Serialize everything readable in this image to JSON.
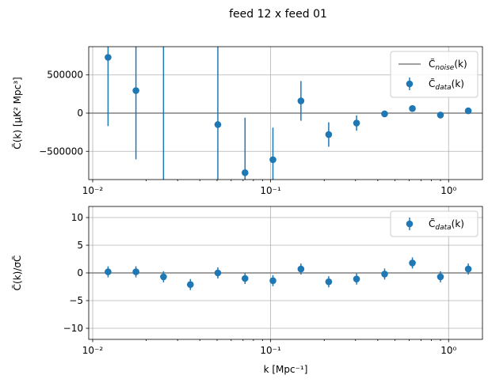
{
  "figure": {
    "title": "feed 12 x feed 01"
  },
  "colors": {
    "data": "#1f77b4",
    "noise": "#808080",
    "grid": "#b0b0b0"
  },
  "chart_data": [
    {
      "type": "scatter",
      "xscale": "log",
      "xlim": [
        0.0095,
        1.55
      ],
      "ylim": [
        -870000,
        870000
      ],
      "ylabel": "C̃(k) [μK² Mpc³]",
      "xlabel": "",
      "grid": true,
      "legend_position": "top-right",
      "x_ticks": [
        {
          "value": 0.01,
          "label": "10⁻²"
        },
        {
          "value": 0.1,
          "label": "10⁻¹"
        },
        {
          "value": 1,
          "label": "10⁰"
        }
      ],
      "y_ticks": [
        {
          "value": 500000,
          "label": "500000"
        },
        {
          "value": 0,
          "label": "0"
        },
        {
          "value": -500000,
          "label": "−500000"
        }
      ],
      "legend": [
        {
          "label": "C̃noise(k)",
          "kind": "line"
        },
        {
          "label": "C̃data(k)",
          "kind": "errorbar"
        }
      ],
      "series": [
        {
          "name": "C̃noise(k)",
          "kind": "line",
          "values": [
            0,
            0
          ]
        },
        {
          "name": "C̃data(k)",
          "kind": "errorbar",
          "x": [
            0.0122,
            0.0175,
            0.025,
            0.0505,
            0.0718,
            0.103,
            0.148,
            0.212,
            0.304,
            0.437,
            0.626,
            0.9,
            1.29
          ],
          "y": [
            730000,
            295000,
            null,
            -150000,
            -780000,
            -610000,
            160000,
            -280000,
            -130000,
            -10000,
            60000,
            -25000,
            30000
          ],
          "err": [
            900000,
            900000,
            1150000,
            1100000,
            720000,
            420000,
            260000,
            160000,
            100000,
            30000,
            25000,
            18000,
            15000
          ]
        }
      ]
    },
    {
      "type": "scatter",
      "xscale": "log",
      "xlim": [
        0.0095,
        1.55
      ],
      "ylim": [
        -12,
        12
      ],
      "ylabel": "C̃(k)/σC̃",
      "xlabel": "k [Mpc⁻¹]",
      "grid": true,
      "legend_position": "top-right",
      "x_ticks": [
        {
          "value": 0.01,
          "label": "10⁻²"
        },
        {
          "value": 0.1,
          "label": "10⁻¹"
        },
        {
          "value": 1,
          "label": "10⁰"
        }
      ],
      "y_ticks": [
        {
          "value": 10,
          "label": "10"
        },
        {
          "value": 5,
          "label": "5"
        },
        {
          "value": 0,
          "label": "0"
        },
        {
          "value": -5,
          "label": "−5"
        },
        {
          "value": -10,
          "label": "−10"
        }
      ],
      "legend": [
        {
          "label": "C̃data(k)",
          "kind": "errorbar"
        }
      ],
      "series": [
        {
          "name": "reference",
          "kind": "line",
          "values": [
            0,
            0
          ]
        },
        {
          "name": "C̃data(k)",
          "kind": "errorbar",
          "x": [
            0.0122,
            0.0175,
            0.025,
            0.0354,
            0.0505,
            0.0718,
            0.103,
            0.148,
            0.212,
            0.304,
            0.437,
            0.626,
            0.9,
            1.29
          ],
          "y": [
            0.2,
            0.2,
            -0.7,
            -2.1,
            0.0,
            -1.0,
            -1.4,
            0.7,
            -1.6,
            -1.1,
            -0.2,
            1.8,
            -0.7,
            0.7
          ],
          "err": [
            1,
            1,
            1,
            1,
            1,
            1,
            1,
            1,
            1,
            1,
            1,
            1,
            1,
            1
          ]
        }
      ]
    }
  ]
}
